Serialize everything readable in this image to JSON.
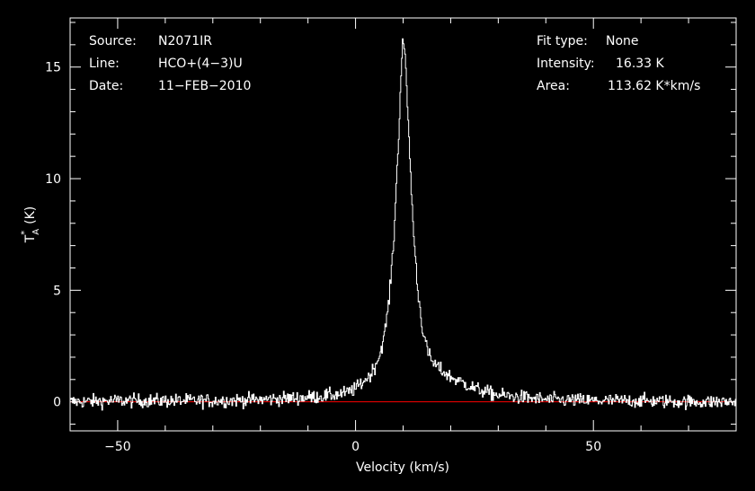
{
  "info": {
    "source_label": "Source:",
    "source_value": "N2071IR",
    "line_label": "Line:",
    "line_value": "HCO+(4−3)U",
    "date_label": "Date:",
    "date_value": "11−FEB−2010",
    "fit_label": "Fit type:",
    "fit_value": "None",
    "intensity_label": "Intensity:",
    "intensity_value": "16.33 K",
    "area_label": "Area:",
    "area_value": "113.62 K*km/s"
  },
  "chart_data": {
    "type": "line",
    "xlabel": "Velocity (km/s)",
    "ylabel_main": "T",
    "ylabel_sup": "*",
    "ylabel_sub": "A",
    "ylabel_unit": "(K)",
    "xlim": [
      -60,
      80
    ],
    "ylim": [
      -1.3,
      17.2
    ],
    "xticks": [
      -50,
      0,
      50
    ],
    "xtick_labels": [
      "−50",
      "0",
      "50"
    ],
    "yticks": [
      0,
      5,
      10,
      15
    ],
    "ytick_labels": [
      "0",
      "5",
      "10",
      "15"
    ],
    "baseline": 0,
    "colors": {
      "spectrum": "#ffffff",
      "baseline": "#ff0000",
      "axes": "#ffffff",
      "background": "#000000"
    },
    "series": [
      {
        "points": [
          [
            -60,
            0.0
          ],
          [
            -50,
            0.05
          ],
          [
            -40,
            0.05
          ],
          [
            -30,
            0.05
          ],
          [
            -20,
            0.1
          ],
          [
            -10,
            0.2
          ],
          [
            -5,
            0.3
          ],
          [
            -2,
            0.4
          ],
          [
            0,
            0.6
          ],
          [
            1,
            0.8
          ],
          [
            2,
            1.0
          ],
          [
            3,
            1.2
          ],
          [
            4,
            1.6
          ],
          [
            5,
            2.1
          ],
          [
            6,
            3.0
          ],
          [
            7,
            4.6
          ],
          [
            8,
            7.4
          ],
          [
            9,
            12.0
          ],
          [
            9.8,
            16.3
          ],
          [
            10.5,
            15.0
          ],
          [
            11,
            12.5
          ],
          [
            12,
            8.0
          ],
          [
            13,
            5.0
          ],
          [
            14,
            3.3
          ],
          [
            15,
            2.3
          ],
          [
            16,
            1.8
          ],
          [
            17,
            1.6
          ],
          [
            18,
            1.4
          ],
          [
            20,
            1.1
          ],
          [
            22,
            0.9
          ],
          [
            25,
            0.6
          ],
          [
            28,
            0.4
          ],
          [
            30,
            0.3
          ],
          [
            35,
            0.2
          ],
          [
            40,
            0.1
          ],
          [
            50,
            0.05
          ],
          [
            60,
            0.05
          ],
          [
            70,
            0.0
          ],
          [
            80,
            0.0
          ]
        ],
        "noise_rms": 0.22,
        "samples_per_kms": 6
      }
    ]
  }
}
